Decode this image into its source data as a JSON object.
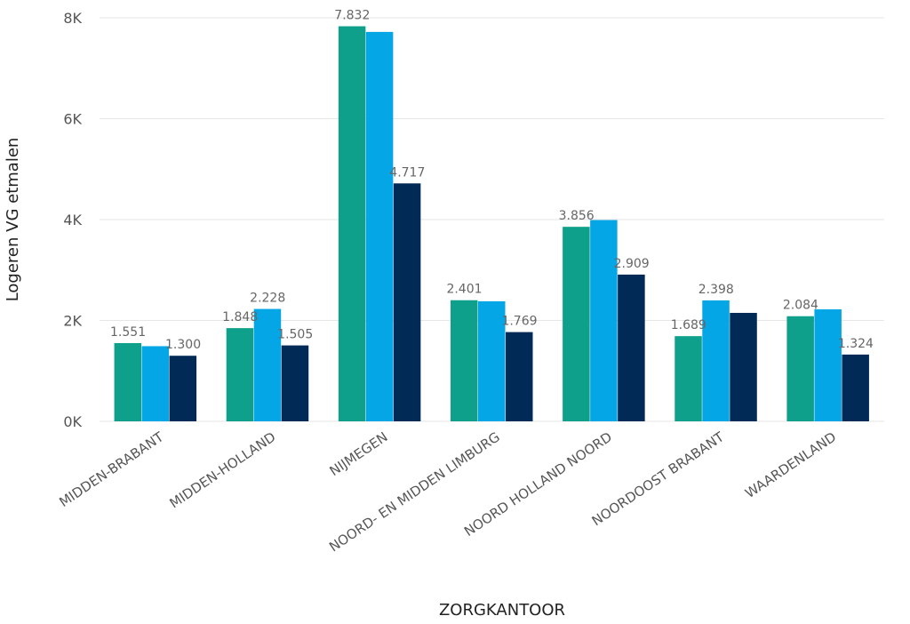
{
  "chart_data": {
    "type": "bar",
    "xlabel": "ZORGKANTOOR",
    "ylabel": "Logeren VG etmalen",
    "ylim": [
      0,
      8000
    ],
    "yticks": [
      0,
      2000,
      4000,
      6000,
      8000
    ],
    "ytick_labels": [
      "0K",
      "2K",
      "4K",
      "6K",
      "8K"
    ],
    "grid": true,
    "legend": "none",
    "colors": [
      "#0fa08c",
      "#05a6e6",
      "#012a56"
    ],
    "categories": [
      "MIDDEN-BRABANT",
      "MIDDEN-HOLLAND",
      "NIJMEGEN",
      "NOORD- EN MIDDEN LIMBURG",
      "NOORD HOLLAND NOORD",
      "NOORDOOST BRABANT",
      "WAARDENLAND"
    ],
    "series": [
      {
        "values": [
          1551,
          1848,
          7832,
          2401,
          3856,
          1689,
          2084
        ],
        "labels": [
          "1.551",
          "1.848",
          "7.832",
          "2.401",
          "3.856",
          "1.689",
          "2.084"
        ]
      },
      {
        "values": [
          1490,
          2228,
          7720,
          2380,
          3990,
          2398,
          2220
        ],
        "labels": [
          "",
          "2.228",
          "",
          "",
          "",
          "2.398",
          ""
        ]
      },
      {
        "values": [
          1300,
          1505,
          4717,
          1769,
          2909,
          2150,
          1324
        ],
        "labels": [
          "1.300",
          "1.505",
          "4.717",
          "1.769",
          "2.909",
          "",
          "1.324"
        ]
      }
    ]
  }
}
